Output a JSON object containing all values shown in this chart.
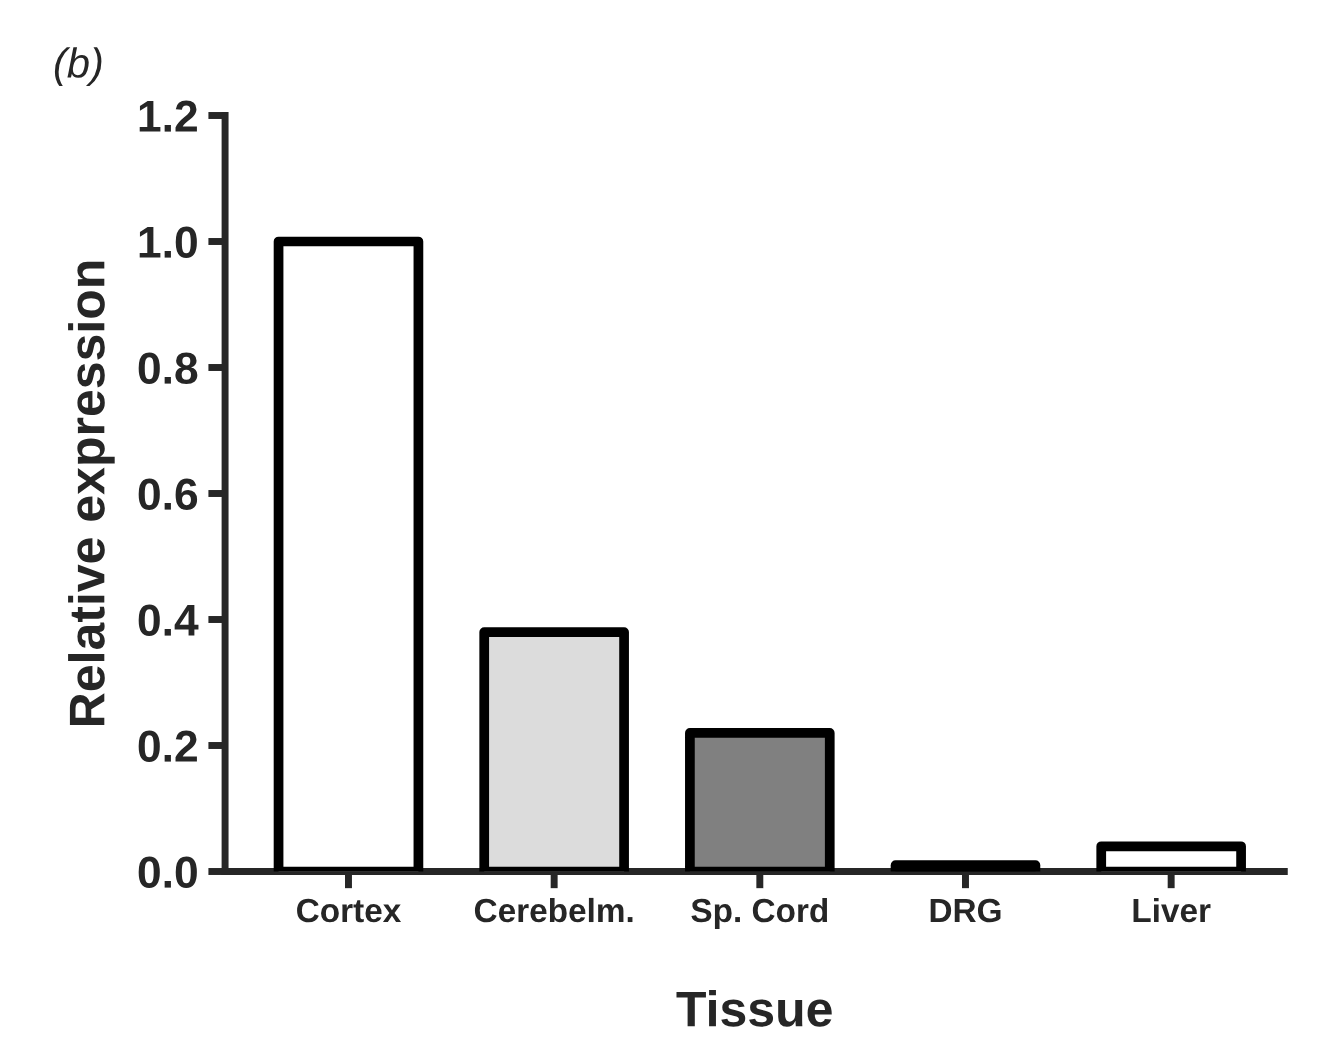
{
  "chart_data": {
    "type": "bar",
    "title": "(b)",
    "xlabel": "Tissue",
    "ylabel": "Relative expression",
    "categories": [
      "Cortex",
      "Cerebelm.",
      "Sp. Cord",
      "DRG",
      "Liver"
    ],
    "values": [
      1.0,
      0.38,
      0.22,
      0.01,
      0.04
    ],
    "colors": [
      "#ffffff",
      "#dcdcdc",
      "#808080",
      "#000000",
      "#ffffff"
    ],
    "ylim": [
      0,
      1.2
    ],
    "yticks": [
      {
        "value": 0,
        "label": "0.0"
      },
      0.2,
      0.4,
      0.6,
      0.8,
      {
        "value": 1,
        "label": "1.0"
      },
      1.2
    ],
    "grid": false,
    "legend": false
  }
}
